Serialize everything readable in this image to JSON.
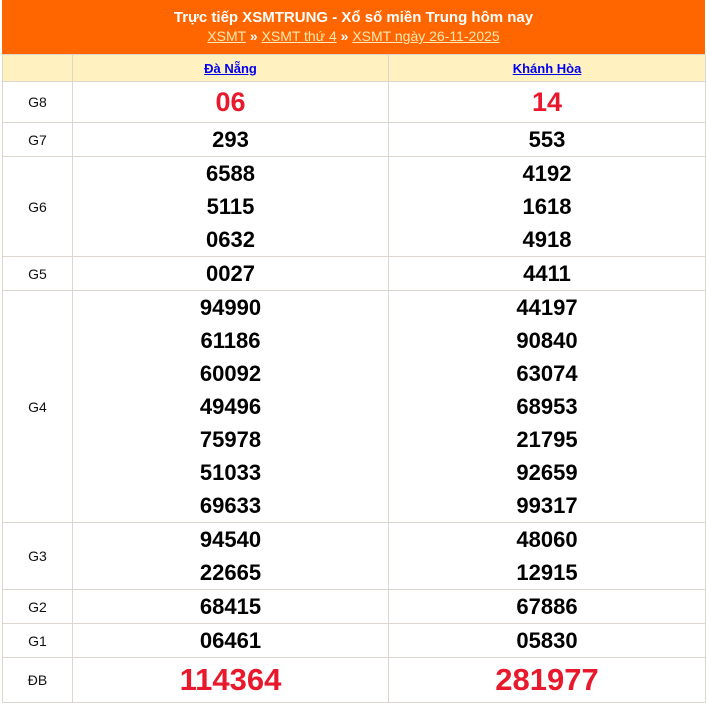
{
  "header": {
    "title": "Trực tiếp XSMTRUNG - Xổ số miền Trung hôm nay",
    "breadcrumb": [
      {
        "label": "XSMT"
      },
      {
        "label": "XSMT thứ 4"
      },
      {
        "label": "XSMT ngày 26-11-2025"
      }
    ],
    "separator": "»"
  },
  "provinces": [
    "Đà Nẵng",
    "Khánh Hòa"
  ],
  "colors": {
    "header_bg": "#ff6600",
    "column_header_bg": "#fff2c0",
    "highlight": "#e8192c"
  },
  "prizes": [
    {
      "label": "G8",
      "values": [
        [
          "06"
        ],
        [
          "14"
        ]
      ]
    },
    {
      "label": "G7",
      "values": [
        [
          "293"
        ],
        [
          "553"
        ]
      ]
    },
    {
      "label": "G6",
      "values": [
        [
          "6588",
          "5115",
          "0632"
        ],
        [
          "4192",
          "1618",
          "4918"
        ]
      ]
    },
    {
      "label": "G5",
      "values": [
        [
          "0027"
        ],
        [
          "4411"
        ]
      ]
    },
    {
      "label": "G4",
      "values": [
        [
          "94990",
          "61186",
          "60092",
          "49496",
          "75978",
          "51033",
          "69633"
        ],
        [
          "44197",
          "90840",
          "63074",
          "68953",
          "21795",
          "92659",
          "99317"
        ]
      ]
    },
    {
      "label": "G3",
      "values": [
        [
          "94540",
          "22665"
        ],
        [
          "48060",
          "12915"
        ]
      ]
    },
    {
      "label": "G2",
      "values": [
        [
          "68415"
        ],
        [
          "67886"
        ]
      ]
    },
    {
      "label": "G1",
      "values": [
        [
          "06461"
        ],
        [
          "05830"
        ]
      ]
    },
    {
      "label": "ĐB",
      "values": [
        [
          "114364"
        ],
        [
          "281977"
        ]
      ]
    }
  ]
}
